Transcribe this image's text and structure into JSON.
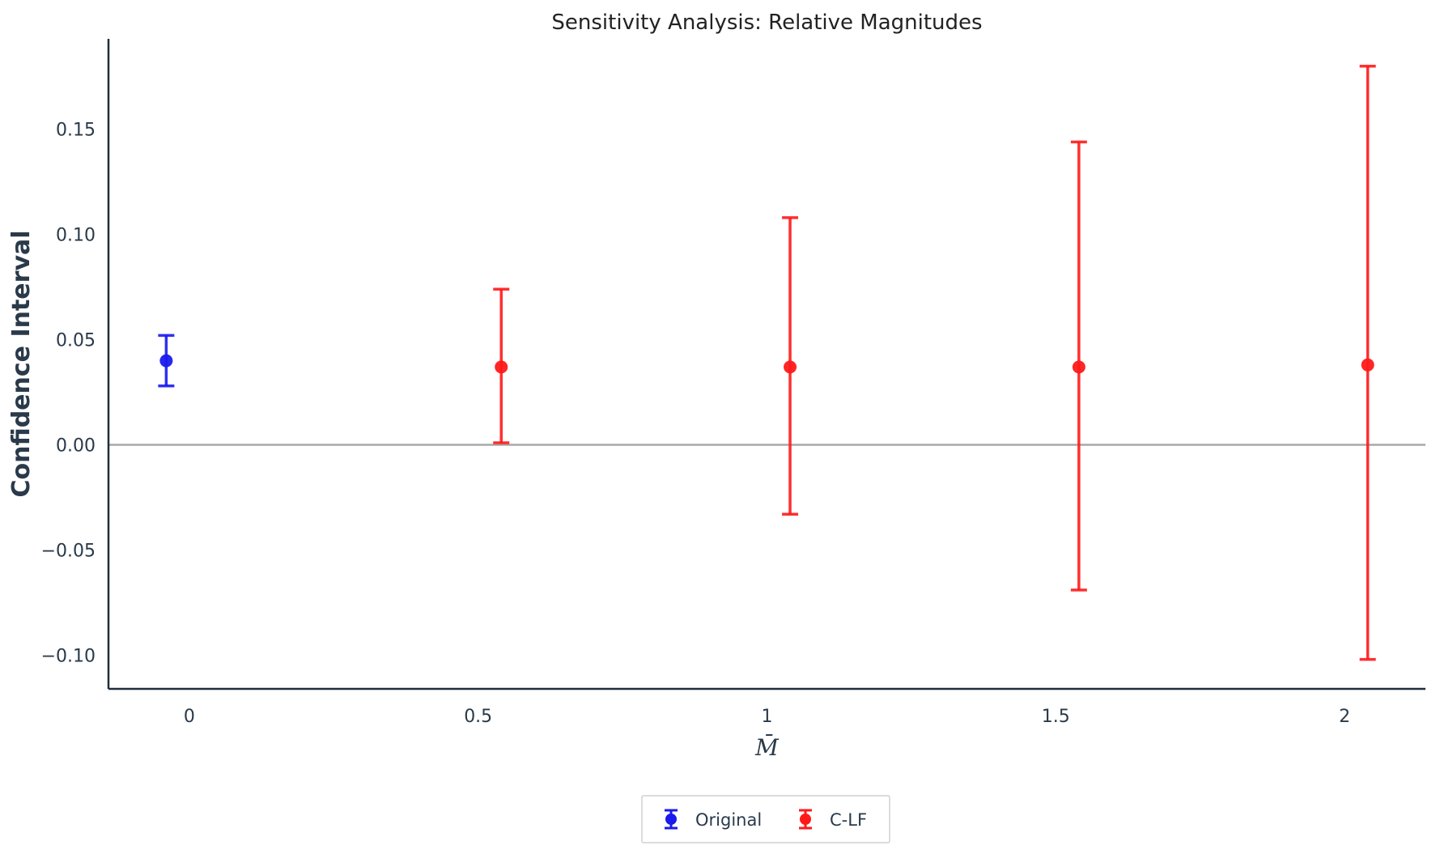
{
  "chart_data": {
    "type": "scatter",
    "title": "Sensitivity Analysis: Relative Magnitudes",
    "xlabel": "M̄",
    "ylabel": "Confidence Interval",
    "x_ticks": [
      {
        "value": 0,
        "label": "0"
      },
      {
        "value": 0.5,
        "label": "0.5"
      },
      {
        "value": 1,
        "label": "1"
      },
      {
        "value": 1.5,
        "label": "1.5"
      },
      {
        "value": 2,
        "label": "2"
      }
    ],
    "y_ticks": [
      {
        "value": -0.1,
        "label": "−0.10"
      },
      {
        "value": -0.05,
        "label": "−0.05"
      },
      {
        "value": 0.0,
        "label": "0.00"
      },
      {
        "value": 0.05,
        "label": "0.05"
      },
      {
        "value": 0.1,
        "label": "0.10"
      },
      {
        "value": 0.15,
        "label": "0.15"
      }
    ],
    "xlim": [
      -0.14,
      2.14
    ],
    "ylim": [
      -0.116,
      0.193
    ],
    "reference_line": {
      "y": 0,
      "color": "#a9a9a9"
    },
    "grid": false,
    "legend_position": "bottom-center",
    "series": [
      {
        "name": "Original",
        "color": "#1a1aee",
        "points": [
          {
            "x": -0.04,
            "y": 0.04,
            "lo": 0.028,
            "hi": 0.052
          }
        ]
      },
      {
        "name": "C-LF",
        "color": "#ff1a1a",
        "points": [
          {
            "x": 0.54,
            "y": 0.037,
            "lo": 0.001,
            "hi": 0.074
          },
          {
            "x": 1.04,
            "y": 0.037,
            "lo": -0.033,
            "hi": 0.108
          },
          {
            "x": 1.54,
            "y": 0.037,
            "lo": -0.069,
            "hi": 0.144
          },
          {
            "x": 2.04,
            "y": 0.038,
            "lo": -0.102,
            "hi": 0.18
          }
        ]
      }
    ]
  }
}
